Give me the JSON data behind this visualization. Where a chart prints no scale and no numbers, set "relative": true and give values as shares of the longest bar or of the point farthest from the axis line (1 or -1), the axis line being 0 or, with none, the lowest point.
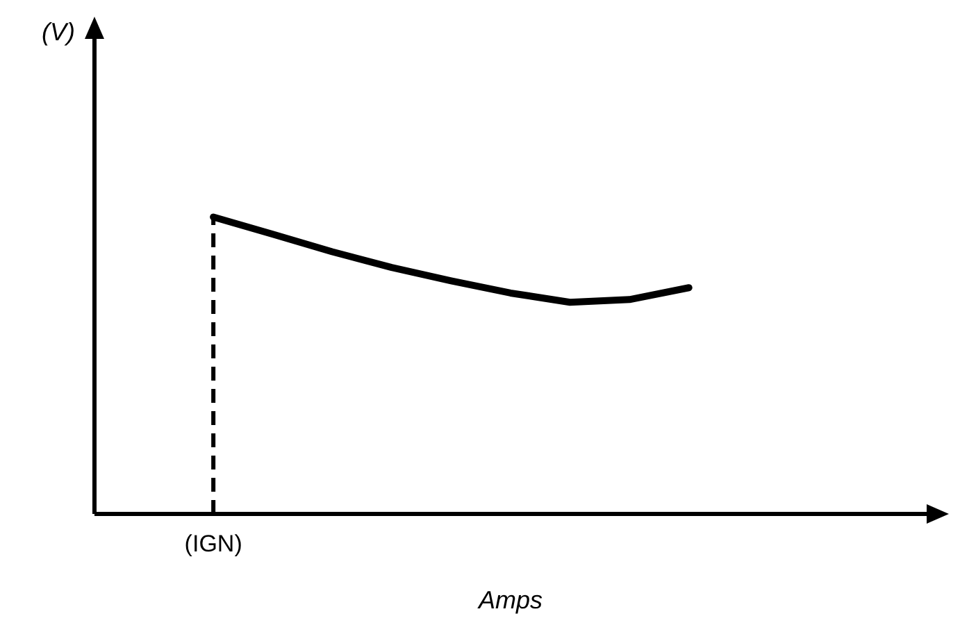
{
  "chart_data": {
    "type": "line",
    "relative": true,
    "xlabel": "Amps",
    "annotations": [
      "(V)"
    ],
    "categories": [
      null,
      null,
      null,
      null,
      null,
      null,
      null,
      null,
      null,
      null,
      null,
      null,
      null,
      null,
      null
    ],
    "series": [
      {
        "color": "#000000",
        "values": [
          null,
          null,
          1,
          0.942,
          0.883,
          0.83,
          0.785,
          0.744,
          0.713,
          0.722,
          0.762,
          null,
          null,
          null,
          null
        ]
      }
    ],
    "ref_lines": [
      {
        "axis": "x",
        "label": "(IGN)",
        "color": "#000000",
        "line_style": "dashed"
      }
    ],
    "grid": false,
    "legend": false,
    "marker": "none",
    "line_style": "solid"
  }
}
